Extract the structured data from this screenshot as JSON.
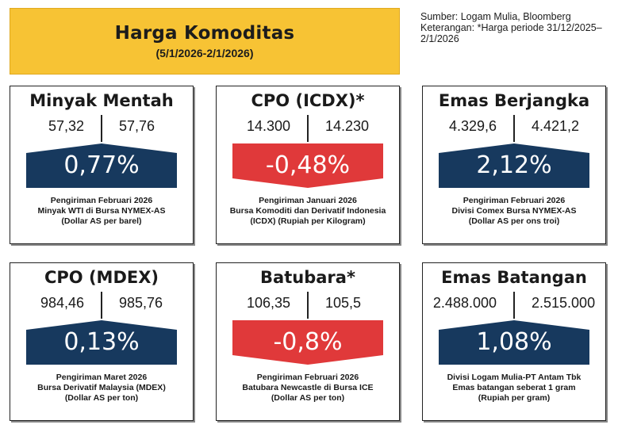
{
  "header": {
    "title": "Harga Komoditas",
    "period": "(5/1/2026-2/1/2026)"
  },
  "source": {
    "line1": "Sumber: Logam Mulia, Bloomberg",
    "line2": "Keterangan: *Harga periode 31/12/2025–",
    "line3": "2/1/2026"
  },
  "colors": {
    "up": "#17395e",
    "down": "#e0393a"
  },
  "cards": [
    {
      "title": "Minyak Mentah",
      "left": "57,32",
      "right": "57,76",
      "change": "0,77%",
      "direction": "up",
      "note1": "Pengiriman Februari 2026",
      "note2": "Minyak WTI di Bursa NYMEX-AS",
      "note3": "(Dollar AS per barel)"
    },
    {
      "title": "CPO (ICDX)*",
      "left": "14.300",
      "right": "14.230",
      "change": "-0,48%",
      "direction": "down",
      "note1": "Pengiriman Januari 2026",
      "note2": "Bursa Komoditi dan Derivatif Indonesia",
      "note3": "(ICDX) (Rupiah per Kilogram)"
    },
    {
      "title": "Emas Berjangka",
      "left": "4.329,6",
      "right": "4.421,2",
      "change": "2,12%",
      "direction": "up",
      "note1": "Pengiriman Februari 2026",
      "note2": "Divisi Comex Bursa NYMEX-AS",
      "note3": "(Dollar AS per ons troi)"
    },
    {
      "title": "CPO (MDEX)",
      "left": "984,46",
      "right": "985,76",
      "change": "0,13%",
      "direction": "up",
      "note1": "Pengiriman Maret 2026",
      "note2": "Bursa Derivatif Malaysia (MDEX)",
      "note3": "(Dollar AS per ton)"
    },
    {
      "title": "Batubara*",
      "left": "106,35",
      "right": "105,5",
      "change": "-0,8%",
      "direction": "down",
      "note1": "Pengiriman Februari 2026",
      "note2": "Batubara Newcastle di Bursa ICE",
      "note3": "(Dollar AS per ton)"
    },
    {
      "title": "Emas Batangan",
      "left": "2.488.000",
      "right": "2.515.000",
      "change": "1,08%",
      "direction": "up",
      "note1": "Divisi Logam Mulia-PT Antam Tbk",
      "note2": "Emas batangan seberat 1 gram",
      "note3": "(Rupiah per gram)"
    }
  ]
}
